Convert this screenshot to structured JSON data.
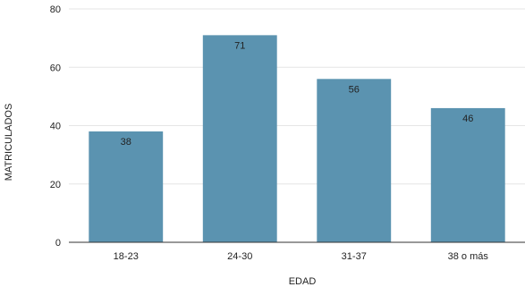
{
  "chart_data": {
    "type": "bar",
    "title": "",
    "xlabel": "EDAD",
    "ylabel": "MATRICULADOS",
    "categories": [
      "18-23",
      "24-30",
      "31-37",
      "38 o más"
    ],
    "values": [
      38,
      71,
      56,
      46
    ],
    "data_labels": [
      "38",
      "71",
      "56",
      "46"
    ],
    "ylim": [
      0,
      80
    ],
    "yticks": [
      0,
      20,
      40,
      60,
      80
    ],
    "grid": true,
    "legend": "none",
    "bar_color": "#5b93b0",
    "grid_color": "#e6e6e6",
    "axis_color": "#333333"
  }
}
